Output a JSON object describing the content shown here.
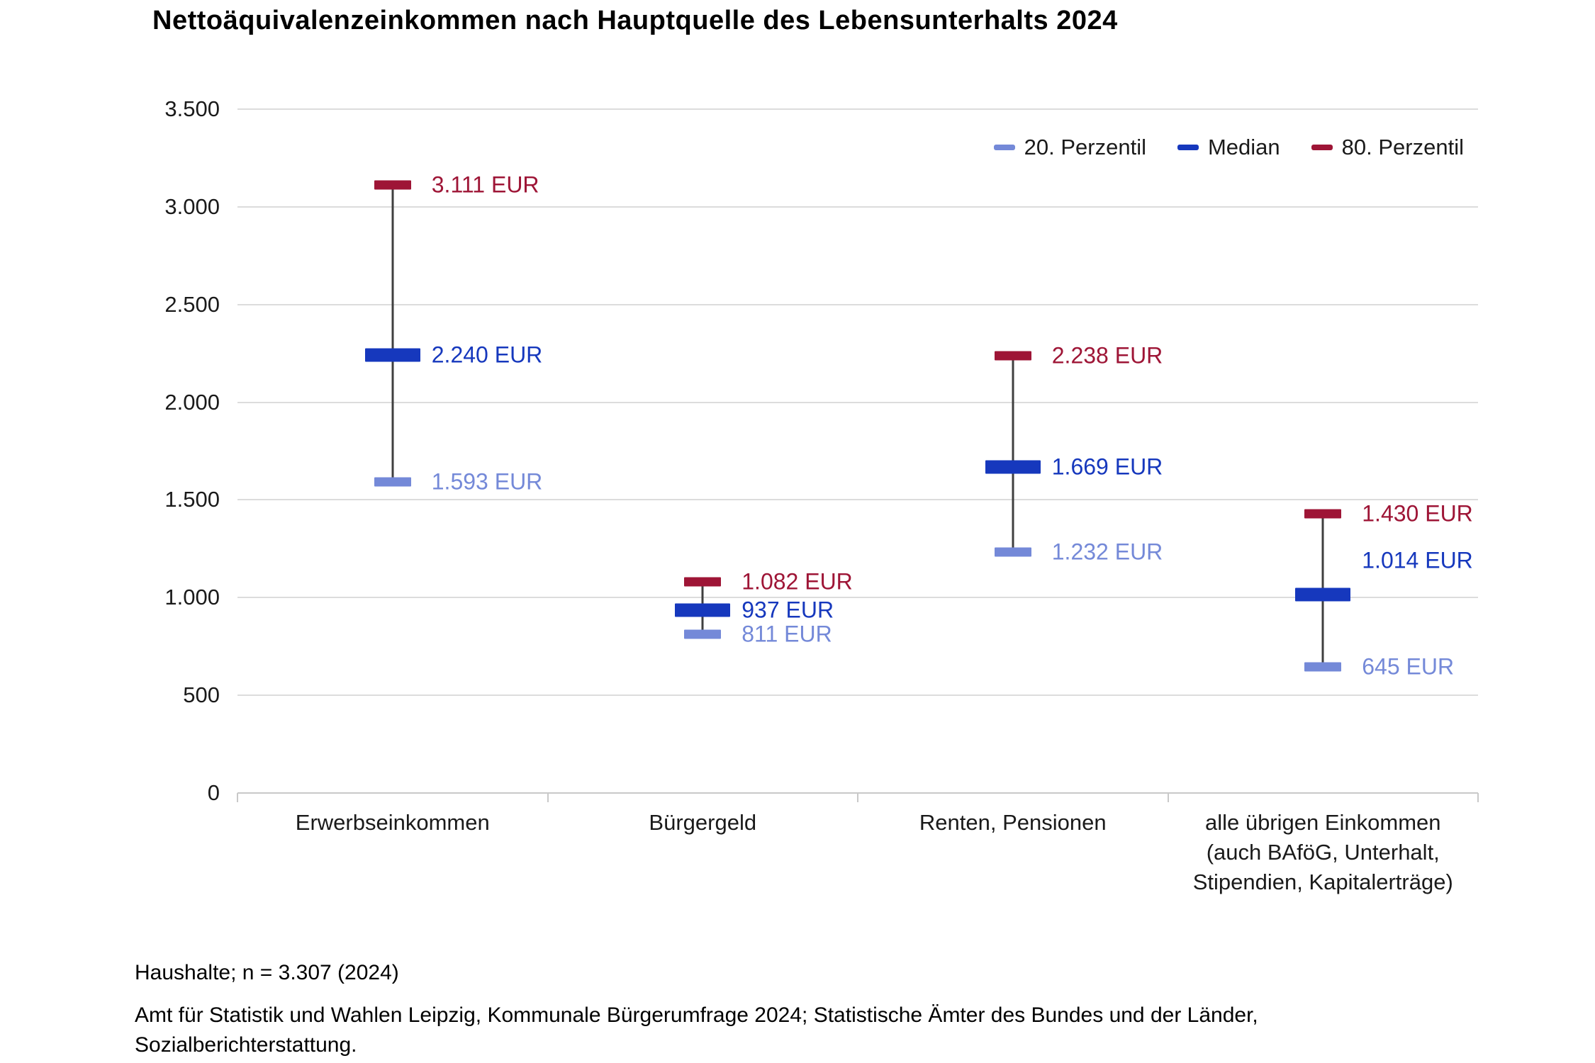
{
  "title": "Nettoäquivalenzeinkommen nach Hauptquelle des Lebensunterhalts 2024",
  "chart_data": {
    "type": "scatter",
    "variant": "percentile-range-whisker",
    "title": "Nettoäquivalenzeinkommen nach Hauptquelle des Lebensunterhalts 2024",
    "unit": "EUR",
    "categories": [
      "Erwerbseinkommen",
      "Bürgergeld",
      "Renten, Pensionen",
      "alle übrigen Einkommen\n(auch BAföG, Unterhalt,\nStipendien, Kapitalerträge)"
    ],
    "series": [
      {
        "name": "20. Perzentil",
        "role": "p20",
        "color": "#7489d8",
        "values": [
          1593,
          811,
          1232,
          645
        ],
        "labels": [
          "1.593 EUR",
          "811 EUR",
          "1.232 EUR",
          "645 EUR"
        ]
      },
      {
        "name": "Median",
        "role": "median",
        "color": "#1638bd",
        "values": [
          2240,
          937,
          1669,
          1014
        ],
        "labels": [
          "2.240 EUR",
          "937 EUR",
          "1.669 EUR",
          "1.014 EUR"
        ],
        "label_dy": [
          0,
          0,
          0,
          -48
        ]
      },
      {
        "name": "80. Perzentil",
        "role": "p80",
        "color": "#9e1536",
        "values": [
          3111,
          1082,
          2238,
          1430
        ],
        "labels": [
          "3.111 EUR",
          "1.082 EUR",
          "2.238 EUR",
          "1.430 EUR"
        ]
      }
    ],
    "ylim": [
      0,
      3500
    ],
    "ytick_step": 500,
    "ytick_labels": [
      "0",
      "500",
      "1.000",
      "1.500",
      "2.000",
      "2.500",
      "3.000",
      "3.500"
    ],
    "grid": true,
    "legend_position": "top-right",
    "xlabel": "",
    "ylabel": ""
  },
  "colors": {
    "grid": "#dcdcdc",
    "axis": "#c9c9c9",
    "whisker": "#3f3f3f",
    "text": "#1a1a1a"
  },
  "footer": {
    "sample": "Haushalte; n = 3.307 (2024)",
    "source": "Amt für Statistik und Wahlen Leipzig, Kommunale Bürgerumfrage 2024; Statistische Ämter des Bundes und der Länder,\nSozialberichterstattung."
  }
}
